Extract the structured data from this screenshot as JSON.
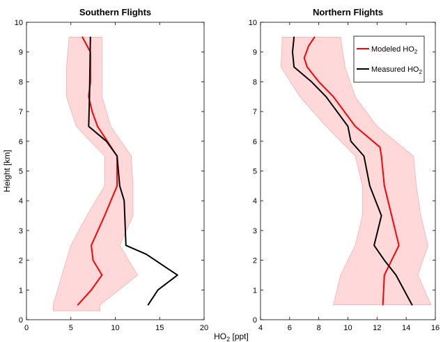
{
  "figure": {
    "shared_xlabel": "HO2 [ppt]",
    "shared_xlabel_base": "HO",
    "shared_xlabel_sub": "2",
    "shared_xlabel_unit": " [ppt]"
  },
  "legend": {
    "modeled_base": "Modeled HO",
    "measured_base": "Measured HO",
    "sub": "2"
  },
  "colors": {
    "modeled": "#ff0000",
    "measured": "#000000",
    "band_fill": "#ffd9d9",
    "band_edge": "#ff9999"
  },
  "chart_data": [
    {
      "type": "line",
      "title": "Southern Flights",
      "xlabel": "",
      "ylabel": "Height [km]",
      "xlim": [
        0,
        20
      ],
      "ylim": [
        0,
        10
      ],
      "xticks": [
        0,
        5,
        10,
        15,
        20
      ],
      "yticks": [
        0,
        1,
        2,
        3,
        4,
        5,
        6,
        7,
        8,
        9,
        10
      ],
      "grid": false,
      "legend_position": "none",
      "band": {
        "y": [
          0.5,
          1.5,
          2.5,
          3.5,
          4.5,
          5.5,
          6.5,
          7.5,
          8.5,
          9.5
        ],
        "low": [
          3.0,
          4.0,
          5.0,
          6.8,
          8.8,
          8.8,
          5.6,
          4.5,
          4.5,
          4.8
        ],
        "high": [
          8.3,
          12.5,
          10.5,
          12.0,
          12.0,
          11.8,
          9.5,
          8.5,
          8.5,
          8.5
        ],
        "y_low_end": 0.3,
        "y_high_end": 9.5
      },
      "series": [
        {
          "name": "Modeled HO2",
          "x": [
            5.8,
            7.3,
            8.5,
            7.5,
            7.3,
            8.8,
            10.2,
            10.2,
            8.0,
            7.4,
            7.0,
            7.2,
            7.2,
            6.3
          ],
          "y": [
            0.5,
            1.0,
            1.5,
            2.0,
            2.5,
            3.5,
            4.5,
            5.5,
            6.5,
            7.0,
            7.5,
            8.0,
            9.0,
            9.5
          ]
        },
        {
          "name": "Measured HO2",
          "x": [
            13.7,
            14.8,
            17.0,
            16.0,
            13.5,
            11.2,
            11.0,
            10.5,
            10.2,
            9.0,
            7.0,
            7.1,
            7.2
          ],
          "y": [
            0.5,
            1.0,
            1.5,
            1.7,
            2.2,
            2.5,
            4.0,
            4.5,
            5.5,
            6.0,
            6.5,
            7.5,
            9.5
          ]
        }
      ]
    },
    {
      "type": "line",
      "title": "Northern Flights",
      "xlabel": "",
      "ylabel": "",
      "xlim": [
        4,
        16
      ],
      "ylim": [
        0,
        10
      ],
      "xticks": [
        4,
        6,
        8,
        10,
        12,
        14,
        16
      ],
      "yticks": [
        0,
        1,
        2,
        3,
        4,
        5,
        6,
        7,
        8,
        9,
        10
      ],
      "grid": false,
      "legend_position": "top-right",
      "band": {
        "y": [
          0.5,
          1.5,
          2.5,
          3.5,
          4.5,
          5.5,
          6.5,
          7.5,
          8.5,
          9.5
        ],
        "low": [
          9.0,
          9.5,
          10.5,
          11.0,
          11.0,
          10.5,
          8.5,
          6.7,
          5.4,
          5.5
        ],
        "high": [
          15.7,
          14.8,
          15.5,
          15.0,
          14.7,
          14.5,
          12.0,
          10.5,
          9.8,
          9.5
        ],
        "y_low_end": 0.5,
        "y_high_end": 9.5
      },
      "series": [
        {
          "name": "Modeled HO2",
          "x": [
            12.4,
            12.5,
            13.0,
            13.5,
            13.0,
            12.5,
            12.3,
            12.2,
            10.5,
            9.0,
            8.0,
            7.2,
            7.0,
            7.3,
            7.7
          ],
          "y": [
            0.5,
            1.5,
            2.0,
            2.5,
            3.5,
            4.5,
            5.5,
            5.8,
            6.5,
            7.5,
            8.0,
            8.5,
            8.8,
            9.2,
            9.5
          ]
        },
        {
          "name": "Measured HO2",
          "x": [
            14.4,
            13.3,
            12.5,
            11.8,
            12.3,
            11.5,
            11.1,
            10.2,
            10.0,
            8.5,
            7.5,
            6.3,
            6.2,
            6.3
          ],
          "y": [
            0.5,
            1.5,
            2.0,
            2.5,
            3.5,
            4.5,
            5.5,
            6.0,
            6.5,
            7.5,
            8.0,
            8.5,
            9.0,
            9.5
          ]
        }
      ]
    }
  ]
}
